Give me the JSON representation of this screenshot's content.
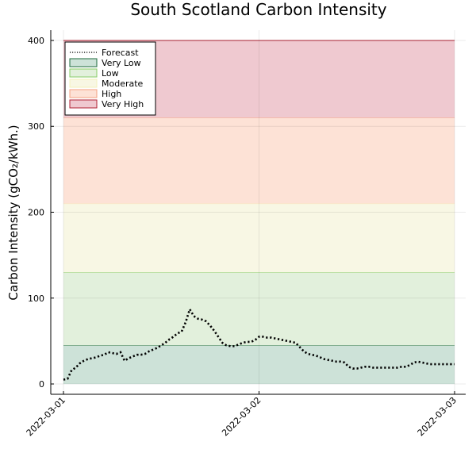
{
  "chart_data": {
    "type": "line",
    "title": "South Scotland Carbon Intensity",
    "xlabel": "",
    "ylabel": "Carbon Intensity (gCO₂/kWh.)",
    "x_ticks": [
      "2022-03-01",
      "2022-03-02",
      "2022-03-03"
    ],
    "y_ticks": [
      0,
      100,
      200,
      300,
      400
    ],
    "xlim": [
      0,
      48
    ],
    "ylim": [
      -12,
      412
    ],
    "grid": true,
    "legend_position": "top-left",
    "bands": [
      {
        "name": "Very Low",
        "from": 0,
        "to": 45,
        "fill": "#cde2d8",
        "edge": "#1e6b3c"
      },
      {
        "name": "Low",
        "from": 45,
        "to": 130,
        "fill": "#e2f0dc",
        "edge": "#88cc66"
      },
      {
        "name": "Moderate",
        "from": 130,
        "to": 210,
        "fill": "#f8f7e4",
        "edge": "#f3f0bb"
      },
      {
        "name": "High",
        "from": 210,
        "to": 310,
        "fill": "#fde2d6",
        "edge": "#f4a080"
      },
      {
        "name": "Very High",
        "from": 310,
        "to": 400,
        "fill": "#efc9d0",
        "edge": "#b22234"
      }
    ],
    "series": [
      {
        "name": "Forecast",
        "style": "dotted",
        "color": "#000000",
        "x": [
          0,
          0.5,
          1,
          1.5,
          2,
          2.5,
          3,
          3.5,
          4,
          4.5,
          5,
          5.5,
          6,
          6.5,
          7,
          7.5,
          8,
          8.5,
          9,
          9.5,
          10,
          10.5,
          11,
          11.5,
          12,
          12.5,
          13,
          13.5,
          14,
          14.5,
          15,
          15.5,
          16,
          16.5,
          17,
          17.5,
          18,
          18.5,
          19,
          19.5,
          20,
          20.5,
          21,
          21.5,
          22,
          22.5,
          23,
          23.5,
          24,
          24.5,
          25,
          25.5,
          26,
          26.5,
          27,
          27.5,
          28,
          28.5,
          29,
          29.5,
          30,
          30.5,
          31,
          31.5,
          32,
          32.5,
          33,
          33.5,
          34,
          34.5,
          35,
          35.5,
          36,
          36.5,
          37,
          37.5,
          38,
          38.5,
          39,
          39.5,
          40,
          40.5,
          41,
          41.5,
          42,
          42.5,
          43,
          43.5,
          44,
          44.5,
          45,
          45.5,
          46,
          46.5,
          47,
          47.5,
          48
        ],
        "values": [
          5,
          6,
          16,
          19,
          24,
          27,
          29,
          30,
          31,
          33,
          34,
          37,
          36,
          35,
          37,
          27,
          30,
          32,
          34,
          34,
          35,
          38,
          40,
          42,
          45,
          48,
          52,
          55,
          59,
          61,
          72,
          87,
          79,
          76,
          75,
          73,
          68,
          62,
          55,
          48,
          45,
          44,
          44,
          46,
          48,
          49,
          49,
          51,
          55,
          55,
          54,
          54,
          53,
          52,
          51,
          50,
          49,
          48,
          43,
          38,
          35,
          34,
          33,
          31,
          29,
          28,
          27,
          26,
          26,
          25,
          20,
          18,
          18,
          19,
          20,
          20,
          19,
          19,
          19,
          19,
          19,
          19,
          19,
          20,
          20,
          22,
          25,
          26,
          25,
          24,
          23,
          23,
          23,
          23,
          23,
          23,
          23
        ]
      }
    ]
  }
}
